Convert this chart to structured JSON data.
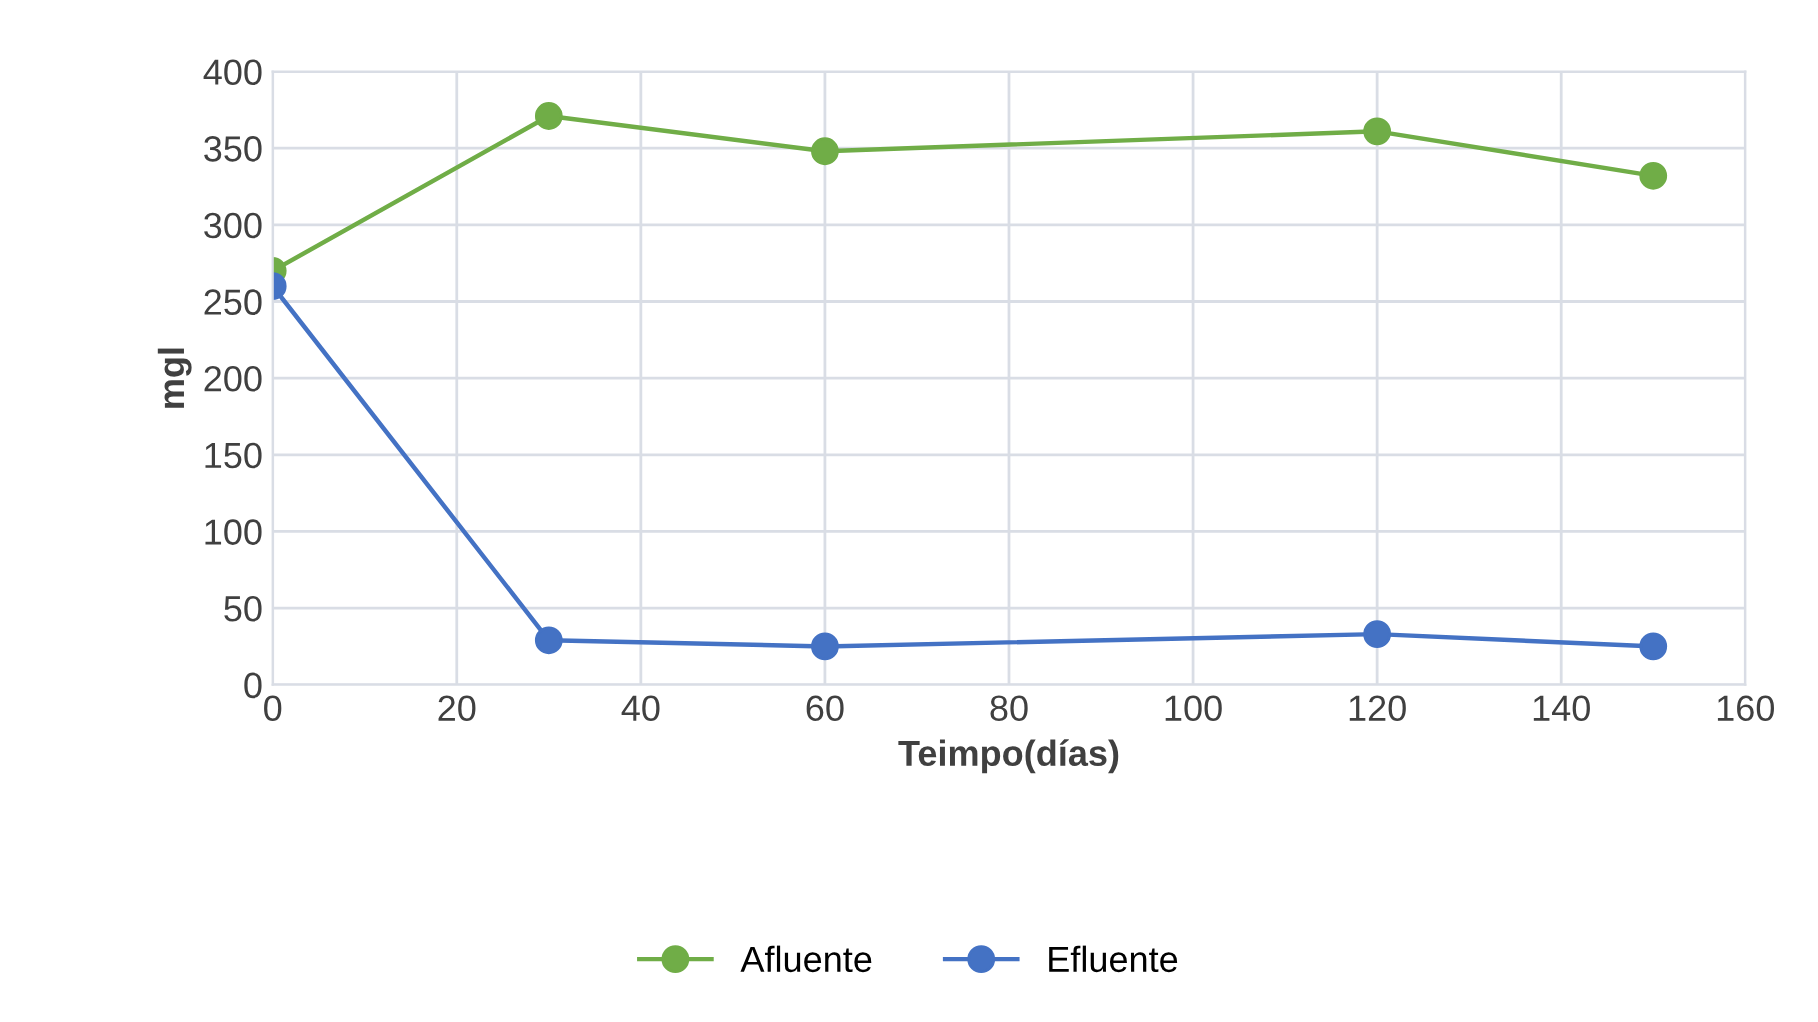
{
  "chart_data": {
    "type": "line",
    "xlabel": "Teimpo(días)",
    "ylabel": "mgl",
    "x": [
      0,
      30,
      60,
      120,
      150
    ],
    "series": [
      {
        "name": "Afluente",
        "color": "#70ad47",
        "values": [
          270,
          371,
          348,
          361,
          332
        ]
      },
      {
        "name": "Efluente",
        "color": "#4472c4",
        "values": [
          260,
          29,
          25,
          33,
          25
        ]
      }
    ],
    "xlim": [
      0,
      160
    ],
    "xticks": [
      0,
      20,
      40,
      60,
      80,
      100,
      120,
      140,
      160
    ],
    "ylim": [
      0,
      400
    ],
    "yticks": [
      0,
      50,
      100,
      150,
      200,
      250,
      300,
      350,
      400
    ],
    "grid": true,
    "legend": "bottom",
    "marker": "circle",
    "line_style": "solid"
  }
}
